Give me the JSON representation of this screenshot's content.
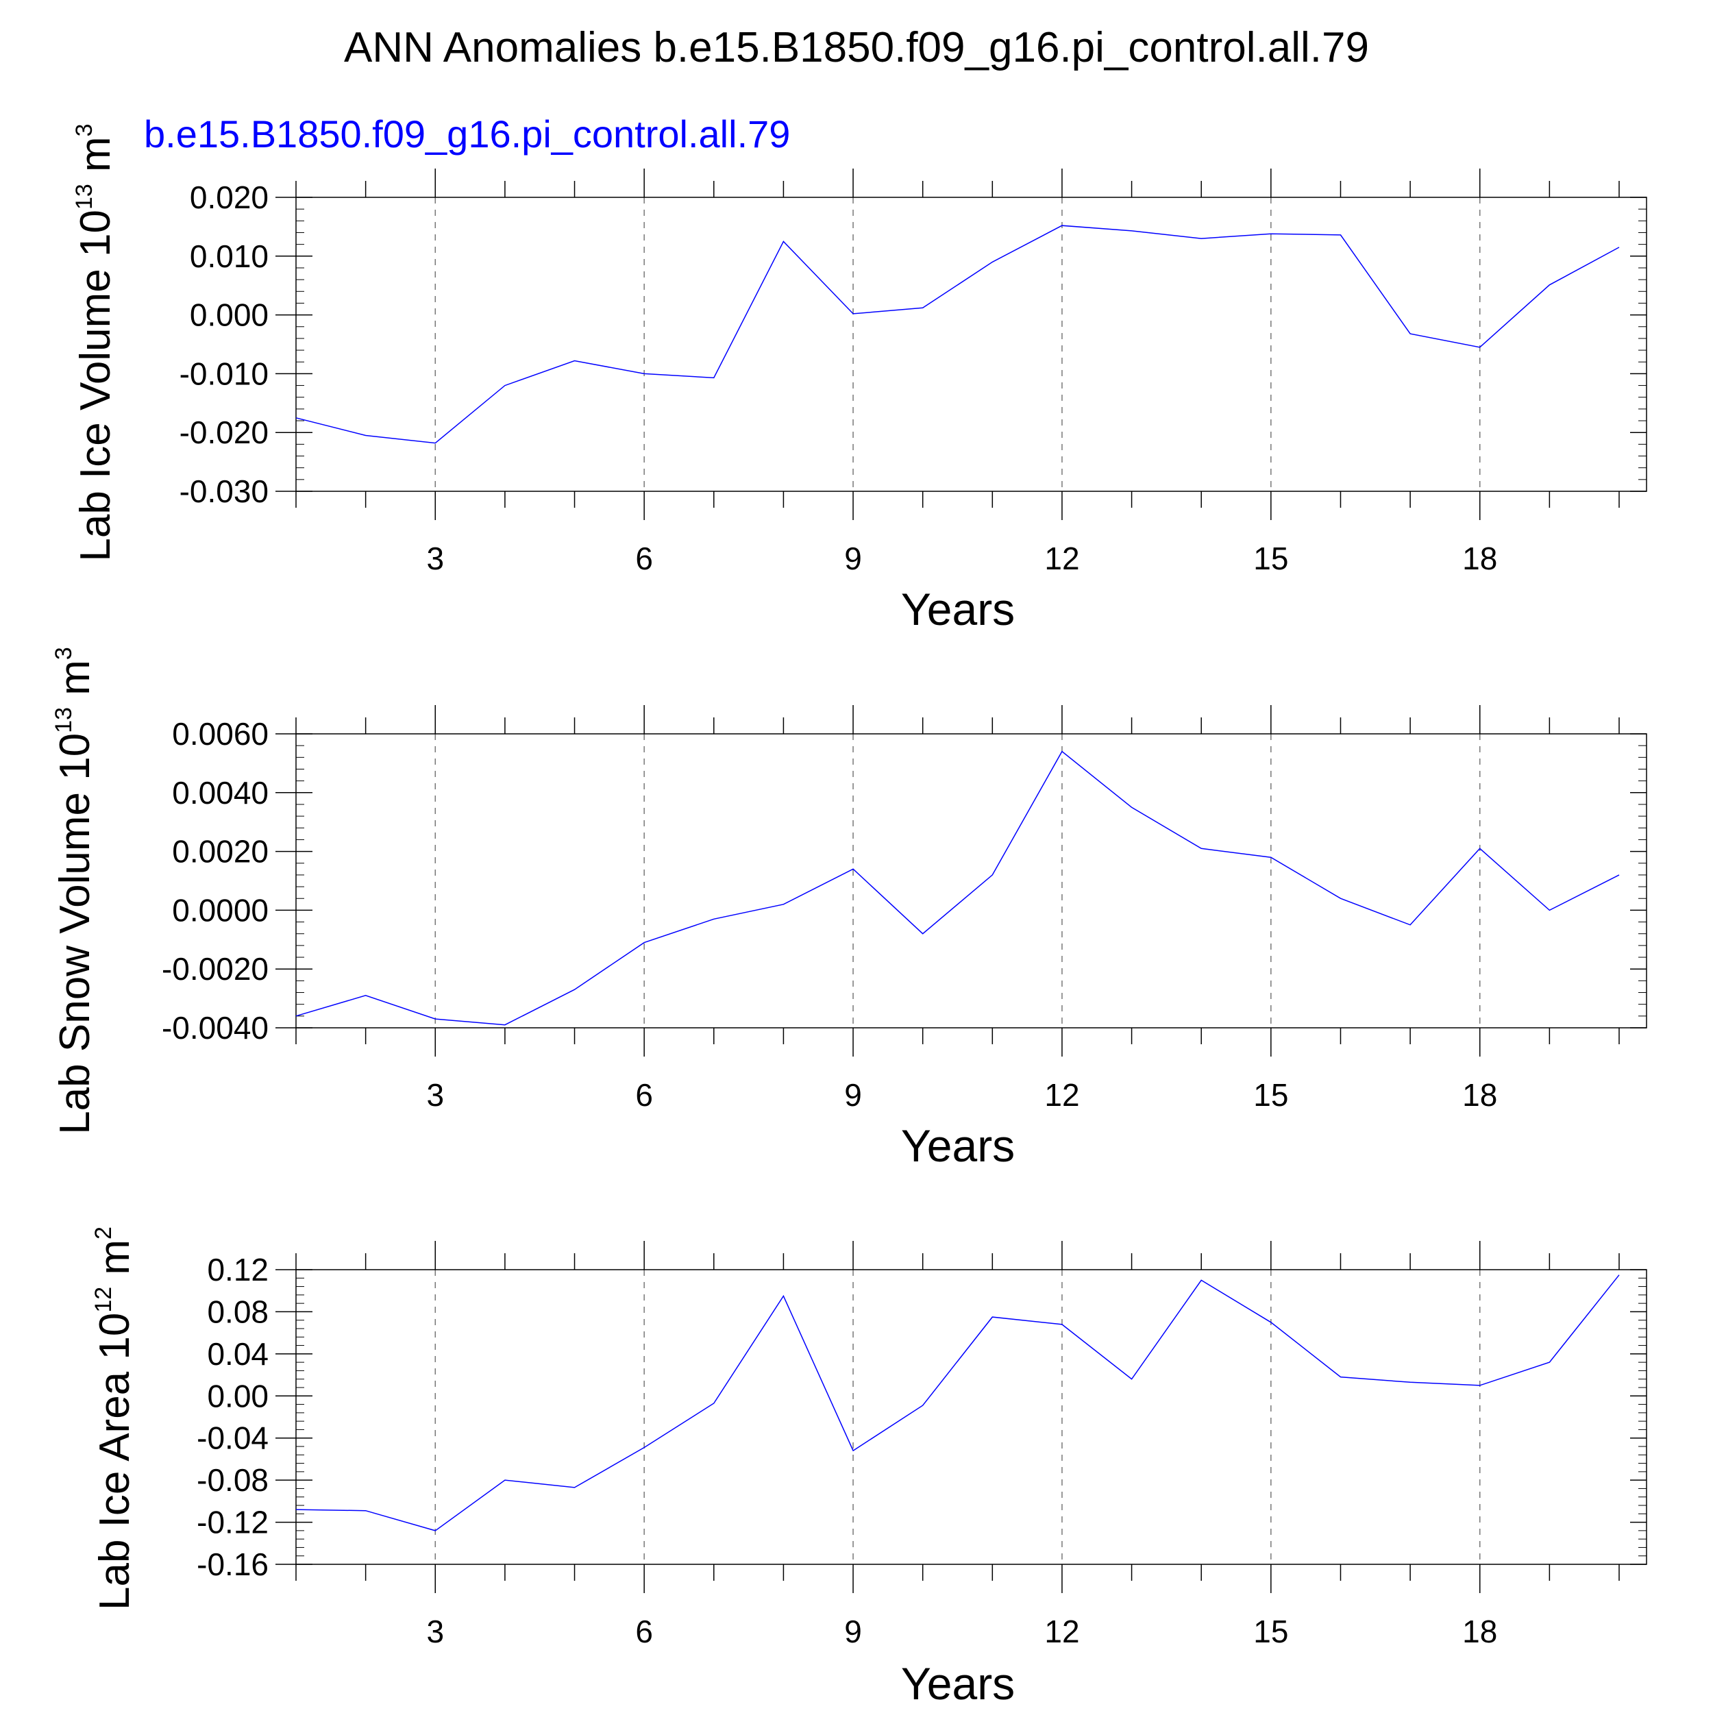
{
  "title": "ANN Anomalies b.e15.B1850.f09_g16.pi_control.all.79",
  "subtitle": "b.e15.B1850.f09_g16.pi_control.all.79",
  "chart_data": [
    {
      "type": "line",
      "ylabel_main": "Lab Ice Volume 10",
      "ylabel_exp": "13",
      "ylabel_unit": " m",
      "ylabel_unit_exp": "3",
      "xlabel": "Years",
      "xlim": [
        1,
        20
      ],
      "ylim": [
        -0.03,
        0.02
      ],
      "yticks": [
        -0.03,
        -0.02,
        -0.01,
        0.0,
        0.01,
        0.02
      ],
      "ytick_labels": [
        "-0.030",
        "-0.020",
        "-0.010",
        "0.000",
        "0.010",
        "0.020"
      ],
      "xticks": [
        3,
        6,
        9,
        12,
        15,
        18
      ],
      "xtick_labels": [
        "3",
        "6",
        "9",
        "12",
        "15",
        "18"
      ],
      "series": [
        {
          "name": "b.e15.B1850.f09_g16.pi_control.all.79",
          "color": "#0000ff",
          "x": [
            1,
            2,
            3,
            4,
            5,
            6,
            7,
            8,
            9,
            10,
            11,
            12,
            13,
            14,
            15,
            16,
            17,
            18,
            19,
            20
          ],
          "values": [
            -0.0175,
            -0.0205,
            -0.0218,
            -0.012,
            -0.0078,
            -0.01,
            -0.0107,
            0.0125,
            0.0002,
            0.0012,
            0.009,
            0.0152,
            0.0143,
            0.013,
            0.0138,
            0.0136,
            -0.0032,
            -0.0055,
            0.0051,
            0.0115
          ]
        }
      ]
    },
    {
      "type": "line",
      "ylabel_main": "Lab Snow Volume 10",
      "ylabel_exp": "13",
      "ylabel_unit": " m",
      "ylabel_unit_exp": "3",
      "xlabel": "Years",
      "xlim": [
        1,
        20
      ],
      "ylim": [
        -0.004,
        0.006
      ],
      "yticks": [
        -0.004,
        -0.002,
        0.0,
        0.002,
        0.004,
        0.006
      ],
      "ytick_labels": [
        "-0.0040",
        "-0.0020",
        "0.0000",
        "0.0020",
        "0.0040",
        "0.0060"
      ],
      "xticks": [
        3,
        6,
        9,
        12,
        15,
        18
      ],
      "xtick_labels": [
        "3",
        "6",
        "9",
        "12",
        "15",
        "18"
      ],
      "series": [
        {
          "name": "b.e15.B1850.f09_g16.pi_control.all.79",
          "color": "#0000ff",
          "x": [
            1,
            2,
            3,
            4,
            5,
            6,
            7,
            8,
            9,
            10,
            11,
            12,
            13,
            14,
            15,
            16,
            17,
            18,
            19,
            20
          ],
          "values": [
            -0.0036,
            -0.0029,
            -0.0037,
            -0.0039,
            -0.0027,
            -0.0011,
            -0.0003,
            0.0002,
            0.0014,
            -0.0008,
            0.0012,
            0.0054,
            0.0035,
            0.0021,
            0.0018,
            0.0004,
            -0.0005,
            0.0021,
            0.0,
            0.0012
          ]
        }
      ]
    },
    {
      "type": "line",
      "ylabel_main": "Lab Ice Area 10",
      "ylabel_exp": "12",
      "ylabel_unit": " m",
      "ylabel_unit_exp": "2",
      "xlabel": "Years",
      "xlim": [
        1,
        20
      ],
      "ylim": [
        -0.16,
        0.12
      ],
      "yticks": [
        -0.16,
        -0.12,
        -0.08,
        -0.04,
        0.0,
        0.04,
        0.08,
        0.12
      ],
      "ytick_labels": [
        "-0.16",
        "-0.12",
        "-0.08",
        "-0.04",
        "0.00",
        "0.04",
        "0.08",
        "0.12"
      ],
      "xticks": [
        3,
        6,
        9,
        12,
        15,
        18
      ],
      "xtick_labels": [
        "3",
        "6",
        "9",
        "12",
        "15",
        "18"
      ],
      "series": [
        {
          "name": "b.e15.B1850.f09_g16.pi_control.all.79",
          "color": "#0000ff",
          "x": [
            1,
            2,
            3,
            4,
            5,
            6,
            7,
            8,
            9,
            10,
            11,
            12,
            13,
            14,
            15,
            16,
            17,
            18,
            19,
            20
          ],
          "values": [
            -0.108,
            -0.109,
            -0.128,
            -0.08,
            -0.087,
            -0.049,
            -0.007,
            0.095,
            -0.052,
            -0.009,
            0.075,
            0.068,
            0.016,
            0.11,
            0.07,
            0.018,
            0.013,
            0.01,
            0.032,
            0.115
          ]
        }
      ]
    }
  ]
}
